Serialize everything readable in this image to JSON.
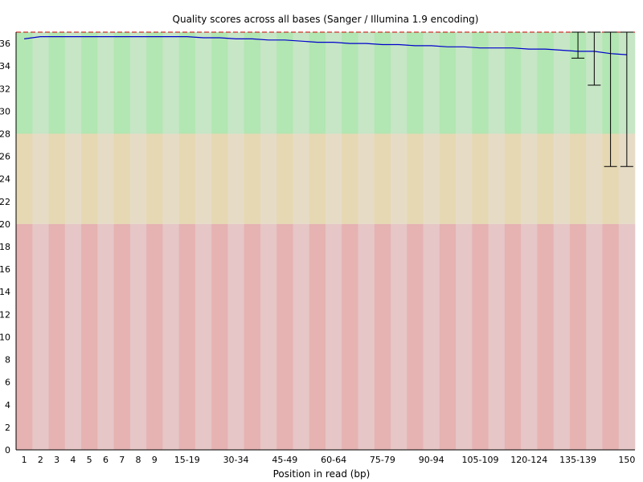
{
  "chart_data": {
    "type": "box",
    "title": "Quality scores across all bases (Sanger / Illumina 1.9 encoding)",
    "xlabel": "Position in read (bp)",
    "ylabel": "",
    "ylim": [
      0,
      37
    ],
    "y_ticks": [
      0,
      2,
      4,
      6,
      8,
      10,
      12,
      14,
      16,
      18,
      20,
      22,
      24,
      26,
      28,
      30,
      32,
      34,
      36
    ],
    "categories": [
      "1",
      "2",
      "3",
      "4",
      "5",
      "6",
      "7",
      "8",
      "9",
      "10-14",
      "15-19",
      "20-24",
      "25-29",
      "30-34",
      "35-39",
      "40-44",
      "45-49",
      "50-54",
      "55-59",
      "60-64",
      "65-69",
      "70-74",
      "75-79",
      "80-84",
      "85-89",
      "90-94",
      "95-99",
      "100-104",
      "105-109",
      "110-114",
      "115-119",
      "120-124",
      "125-129",
      "130-134",
      "135-139",
      "140-144",
      "145-149",
      "150"
    ],
    "x_tick_labels": [
      "1",
      "2",
      "3",
      "4",
      "5",
      "6",
      "7",
      "8",
      "9",
      "15-19",
      "30-34",
      "45-49",
      "60-64",
      "75-79",
      "90-94",
      "105-109",
      "120-124",
      "135-139",
      "150"
    ],
    "mean": [
      36.4,
      36.6,
      36.6,
      36.6,
      36.6,
      36.6,
      36.6,
      36.6,
      36.6,
      36.6,
      36.6,
      36.5,
      36.5,
      36.4,
      36.4,
      36.3,
      36.3,
      36.2,
      36.1,
      36.1,
      36.0,
      36.0,
      35.9,
      35.9,
      35.8,
      35.8,
      35.7,
      35.7,
      35.6,
      35.6,
      35.6,
      35.5,
      35.5,
      35.4,
      35.3,
      35.3,
      35.1,
      35.0
    ],
    "whiskers": [
      {
        "category": "135-139",
        "low": 34.7,
        "high": 37
      },
      {
        "category": "140-144",
        "low": 32.3,
        "high": 37
      },
      {
        "category": "145-149",
        "low": 25.1,
        "high": 37
      },
      {
        "category": "150",
        "low": 25.1,
        "high": 37
      }
    ],
    "bands": [
      {
        "from": 28,
        "to": 37,
        "label": "good"
      },
      {
        "from": 20,
        "to": 28,
        "label": "reasonable"
      },
      {
        "from": 0,
        "to": 20,
        "label": "poor"
      }
    ],
    "colors": {
      "good_dark": "#b2e6b2",
      "good_light": "#c6e6c6",
      "mid_dark": "#e6d8b2",
      "mid_light": "#e6dcc6",
      "poor_dark": "#e6b2b2",
      "poor_light": "#e6c6c6",
      "mean_line": "#0000cc",
      "whisker": "#000000",
      "top_line": "#cc0000"
    }
  }
}
